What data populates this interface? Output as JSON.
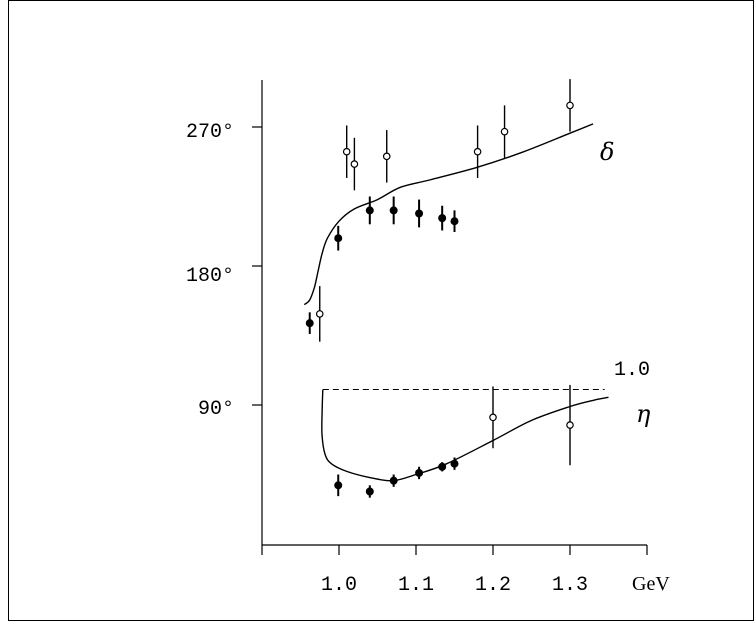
{
  "chart_data": {
    "type": "scatter",
    "title": "",
    "xlabel": "",
    "ylabel": "",
    "x_unit": "GeV",
    "x_ticks": [
      "1.0",
      "1.1",
      "1.2",
      "1.3"
    ],
    "xlim": [
      0.9,
      1.35
    ],
    "y_ticks": [
      "270°",
      "180°",
      "90°"
    ],
    "ylim": [
      0,
      300
    ],
    "eta_reference_label": "1.0",
    "series": [
      {
        "name": "δ",
        "points_filled": [
          {
            "x": 0.962,
            "y": 143,
            "err": 7
          },
          {
            "x": 0.999,
            "y": 198,
            "err": 8
          },
          {
            "x": 1.04,
            "y": 216,
            "err": 9
          },
          {
            "x": 1.071,
            "y": 216,
            "err": 9
          },
          {
            "x": 1.104,
            "y": 214,
            "err": 9
          },
          {
            "x": 1.134,
            "y": 211,
            "err": 8
          },
          {
            "x": 1.15,
            "y": 209,
            "err": 7
          }
        ],
        "points_open": [
          {
            "x": 0.975,
            "y": 149,
            "err": 18
          },
          {
            "x": 1.01,
            "y": 254,
            "err": 17
          },
          {
            "x": 1.02,
            "y": 246,
            "err": 17
          },
          {
            "x": 1.062,
            "y": 251,
            "err": 17
          },
          {
            "x": 1.18,
            "y": 254,
            "err": 17
          },
          {
            "x": 1.215,
            "y": 267,
            "err": 17
          },
          {
            "x": 1.3,
            "y": 284,
            "err": 17
          }
        ],
        "curve": [
          [
            0.955,
            155
          ],
          [
            0.962,
            158
          ],
          [
            0.968,
            166
          ],
          [
            0.973,
            177
          ],
          [
            0.978,
            188
          ],
          [
            0.985,
            198
          ],
          [
            1.0,
            209
          ],
          [
            1.02,
            217
          ],
          [
            1.05,
            223
          ],
          [
            1.08,
            231
          ],
          [
            1.12,
            236
          ],
          [
            1.18,
            244
          ],
          [
            1.24,
            254
          ],
          [
            1.3,
            266
          ],
          [
            1.33,
            272
          ]
        ]
      },
      {
        "name": "η",
        "points_filled": [
          {
            "x": 0.999,
            "y": 38,
            "err": 7
          },
          {
            "x": 1.04,
            "y": 34,
            "err": 4
          },
          {
            "x": 1.071,
            "y": 41,
            "err": 4
          },
          {
            "x": 1.104,
            "y": 46,
            "err": 4
          },
          {
            "x": 1.134,
            "y": 50,
            "err": 3
          },
          {
            "x": 1.15,
            "y": 52,
            "err": 4
          }
        ],
        "points_open": [
          {
            "x": 1.2,
            "y": 82,
            "err": 20
          },
          {
            "x": 1.3,
            "y": 77,
            "err": 26
          }
        ],
        "curve": [
          [
            0.979,
            100
          ],
          [
            0.978,
            85
          ],
          [
            0.978,
            70
          ],
          [
            0.982,
            58
          ],
          [
            0.99,
            52
          ],
          [
            1.01,
            47
          ],
          [
            1.04,
            43
          ],
          [
            1.07,
            41
          ],
          [
            1.1,
            45
          ],
          [
            1.14,
            52
          ],
          [
            1.2,
            67
          ],
          [
            1.25,
            80
          ],
          [
            1.3,
            89
          ],
          [
            1.33,
            93
          ],
          [
            1.35,
            95
          ]
        ]
      }
    ]
  }
}
